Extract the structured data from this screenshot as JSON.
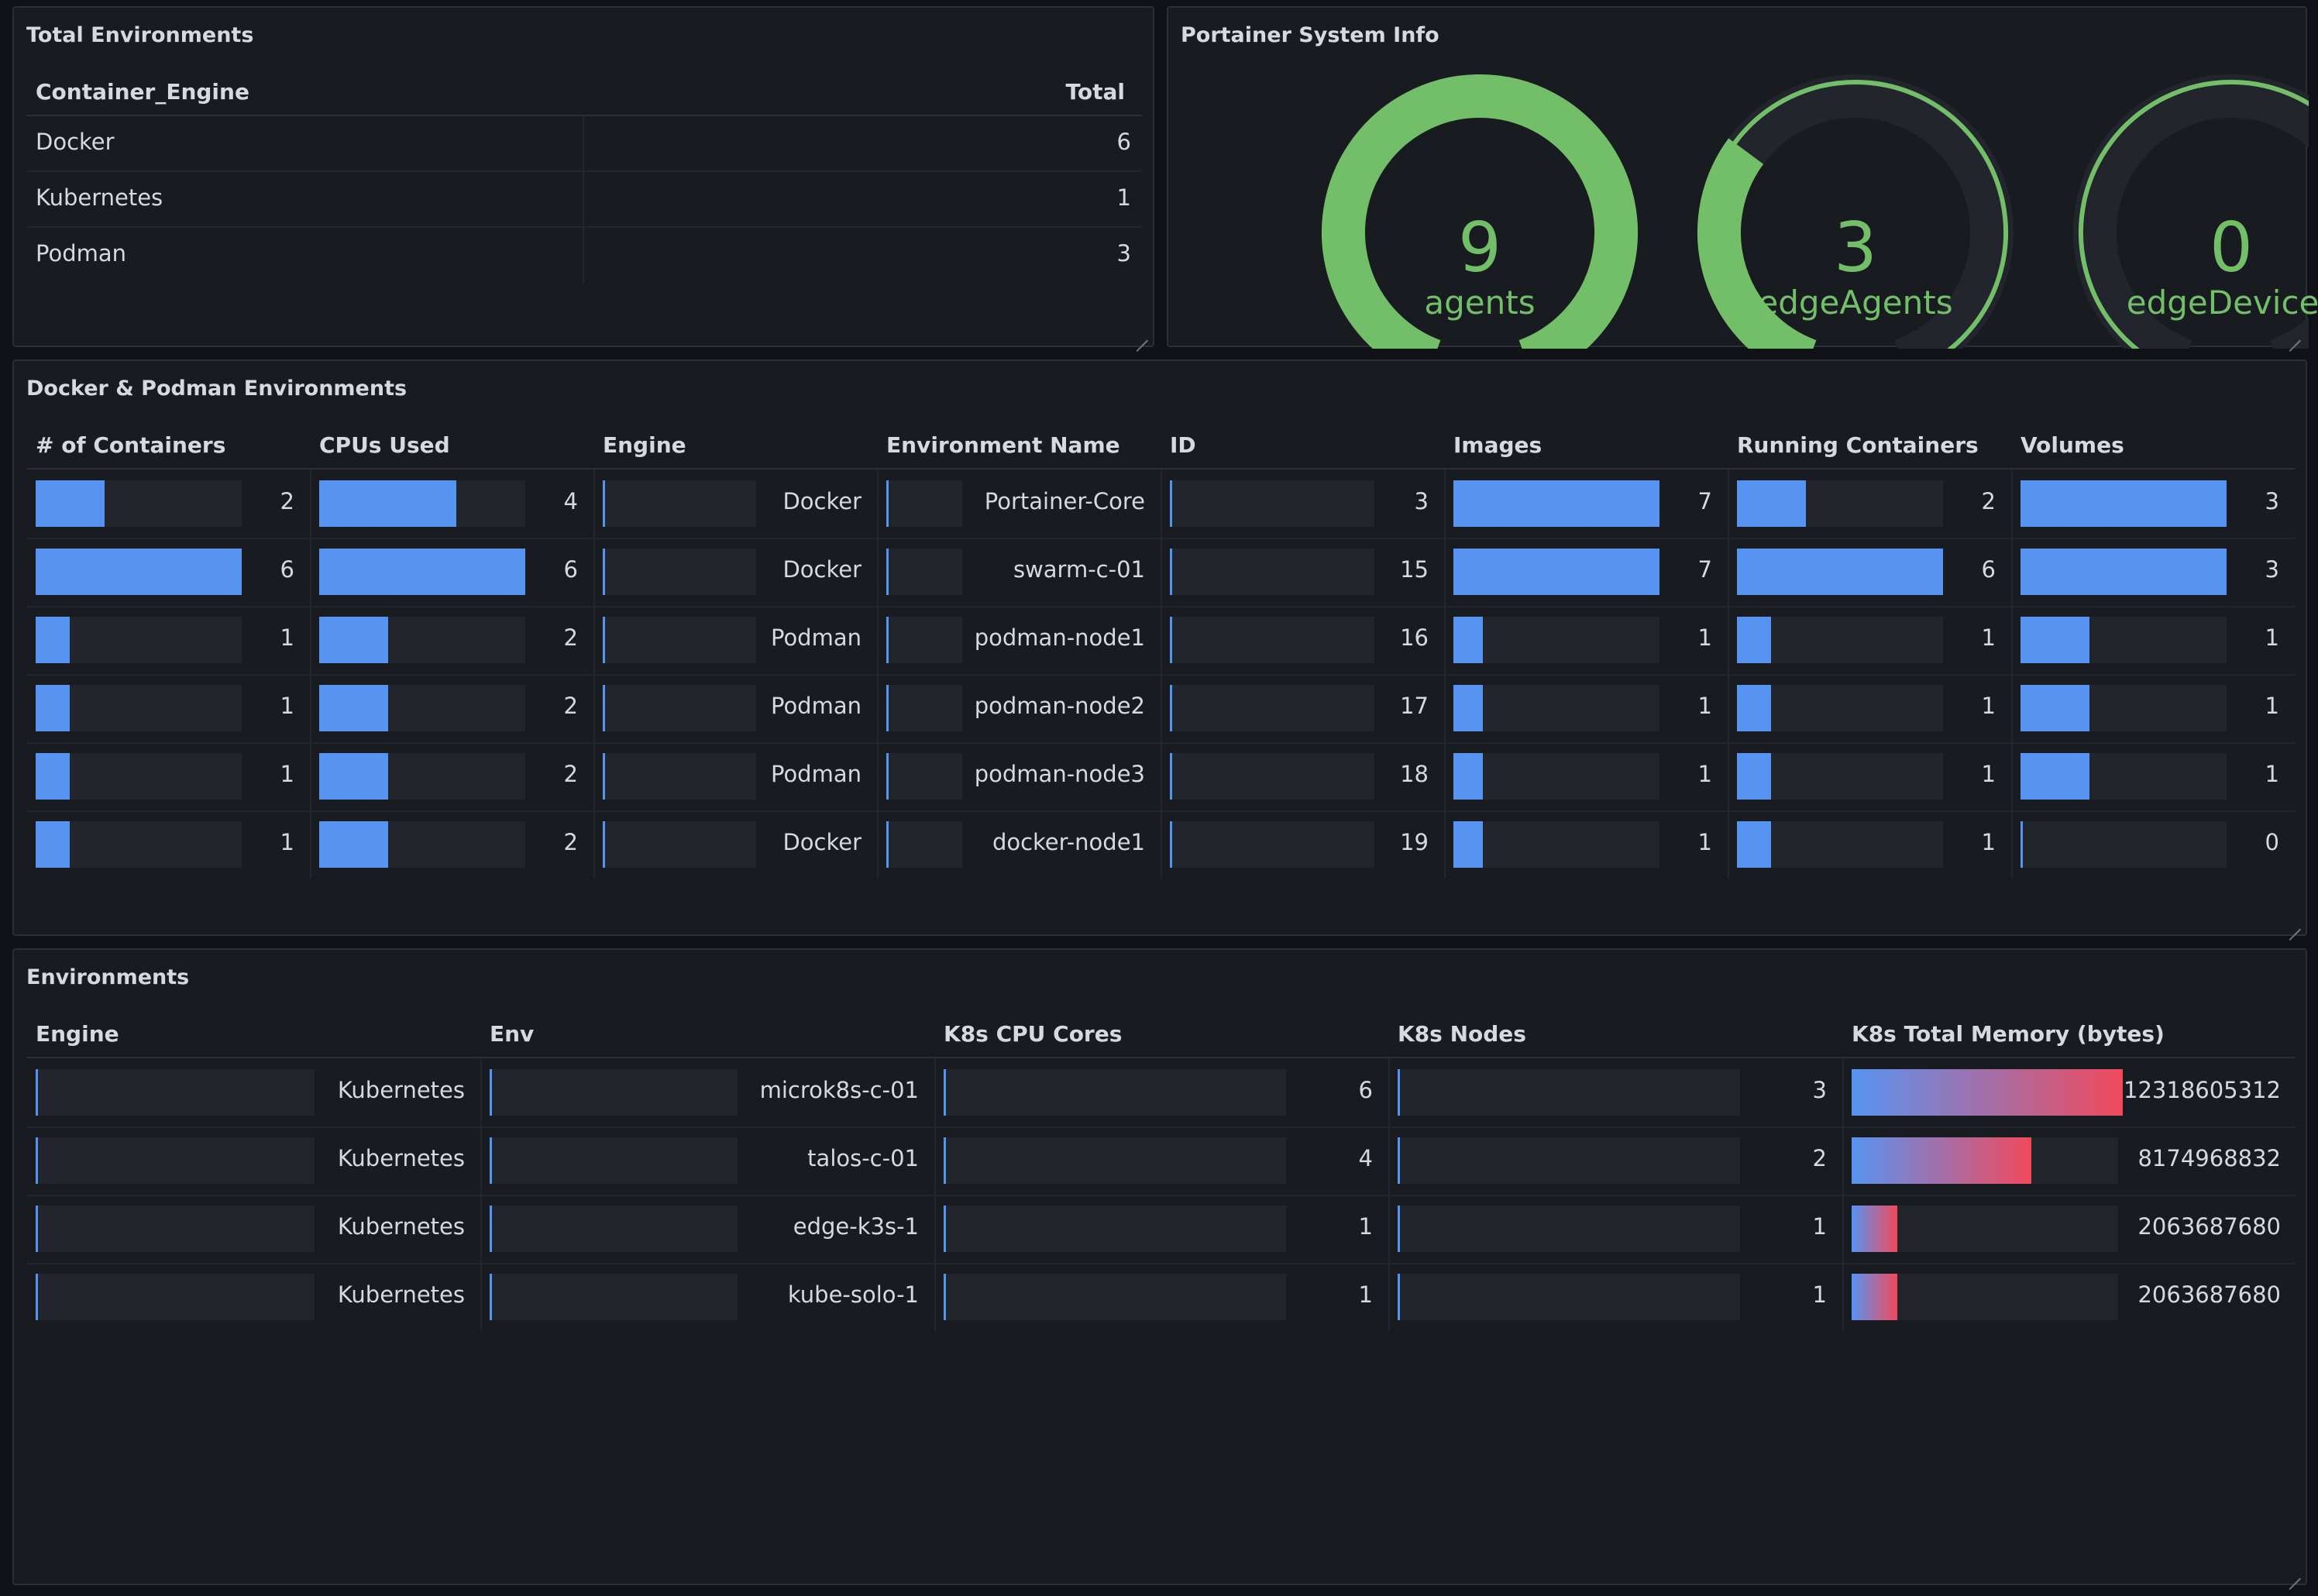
{
  "total_envs": {
    "title": "Total Environments",
    "columns": [
      "Container_Engine",
      "Total"
    ],
    "rows": [
      {
        "engine": "Docker",
        "total": "6"
      },
      {
        "engine": "Kubernetes",
        "total": "1"
      },
      {
        "engine": "Podman",
        "total": "3"
      }
    ]
  },
  "system_info": {
    "title": "Portainer System Info",
    "gauges": [
      {
        "value": "9",
        "label": "agents",
        "fraction": 1.0
      },
      {
        "value": "3",
        "label": "edgeAgents",
        "fraction": 0.333
      },
      {
        "value": "0",
        "label": "edgeDevices",
        "fraction": 0.0
      }
    ]
  },
  "docker_podman": {
    "title": "Docker & Podman Environments",
    "columns": [
      "# of Containers",
      "CPUs Used",
      "Engine",
      "Environment Name",
      "ID",
      "Images",
      "Running Containers",
      "Volumes"
    ],
    "max": {
      "containers": 6,
      "cpus": 6,
      "images": 7,
      "running": 6,
      "volumes": 3
    },
    "rows": [
      {
        "containers": "2",
        "cpus": "4",
        "engine": "Docker",
        "name": "Portainer-Core",
        "id": "3",
        "images": "7",
        "running": "2",
        "volumes": "3"
      },
      {
        "containers": "6",
        "cpus": "6",
        "engine": "Docker",
        "name": "swarm-c-01",
        "id": "15",
        "images": "7",
        "running": "6",
        "volumes": "3"
      },
      {
        "containers": "1",
        "cpus": "2",
        "engine": "Podman",
        "name": "podman-node1",
        "id": "16",
        "images": "1",
        "running": "1",
        "volumes": "1"
      },
      {
        "containers": "1",
        "cpus": "2",
        "engine": "Podman",
        "name": "podman-node2",
        "id": "17",
        "images": "1",
        "running": "1",
        "volumes": "1"
      },
      {
        "containers": "1",
        "cpus": "2",
        "engine": "Podman",
        "name": "podman-node3",
        "id": "18",
        "images": "1",
        "running": "1",
        "volumes": "1"
      },
      {
        "containers": "1",
        "cpus": "2",
        "engine": "Docker",
        "name": "docker-node1",
        "id": "19",
        "images": "1",
        "running": "1",
        "volumes": "0"
      }
    ]
  },
  "environments": {
    "title": "Environments",
    "columns": [
      "Engine",
      "Env",
      "K8s CPU Cores",
      "K8s Nodes",
      "K8s Total Memory (bytes)"
    ],
    "max_memory": 12318605312,
    "rows": [
      {
        "engine": "Kubernetes",
        "env": "microk8s-c-01",
        "cpu": "6",
        "nodes": "3",
        "memory": "12318605312"
      },
      {
        "engine": "Kubernetes",
        "env": "talos-c-01",
        "cpu": "4",
        "nodes": "2",
        "memory": "8174968832"
      },
      {
        "engine": "Kubernetes",
        "env": "edge-k3s-1",
        "cpu": "1",
        "nodes": "1",
        "memory": "2063687680"
      },
      {
        "engine": "Kubernetes",
        "env": "kube-solo-1",
        "cpu": "1",
        "nodes": "1",
        "memory": "2063687680"
      }
    ]
  },
  "colors": {
    "bar": "#5794f2",
    "gauge": "#73bf69",
    "gradient_end": "#f2495c"
  }
}
